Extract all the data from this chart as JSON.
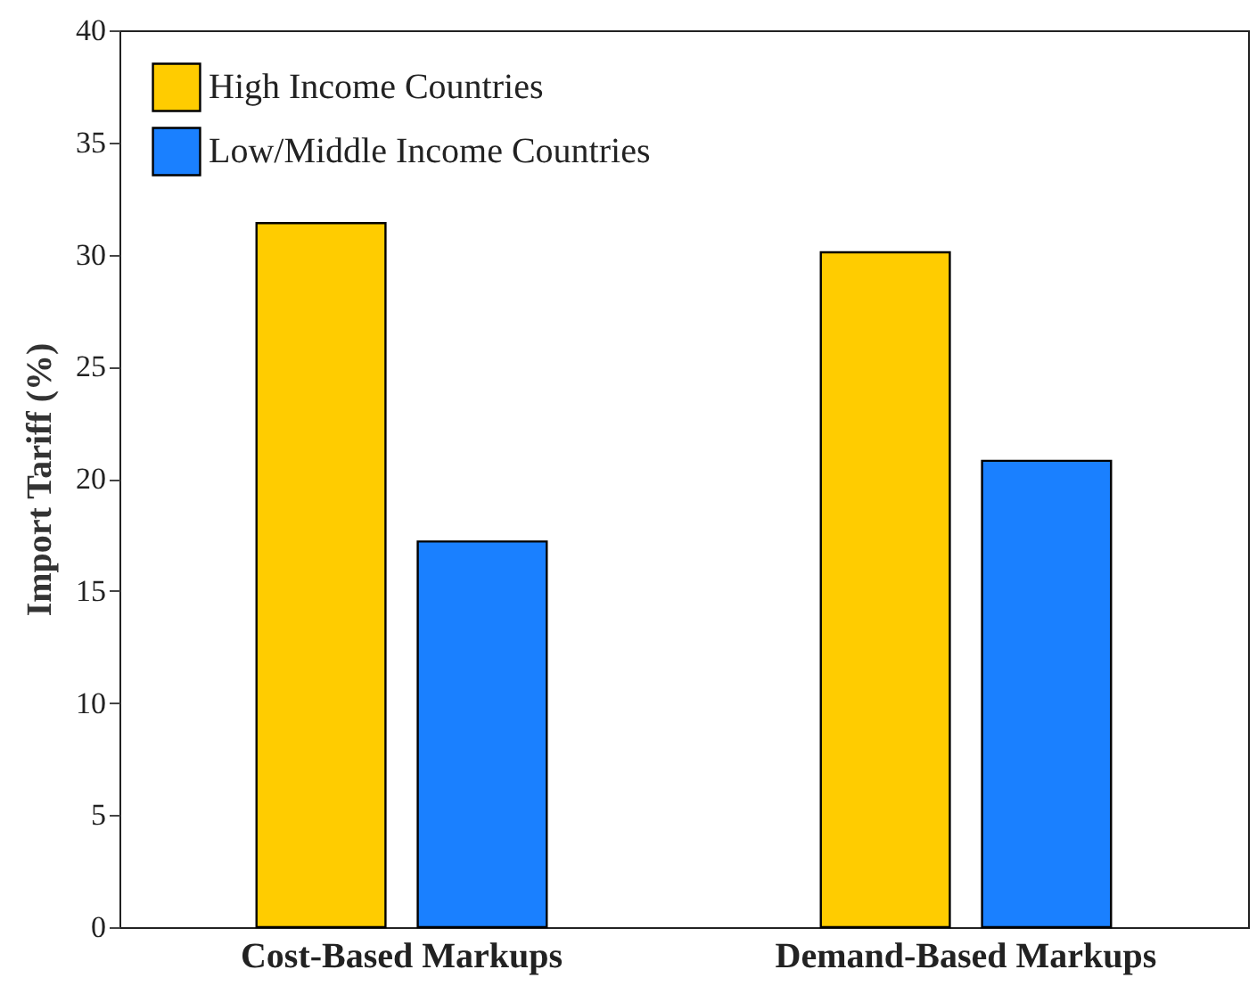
{
  "chart_data": {
    "type": "bar",
    "ylabel": "Import Tariff (%)",
    "categories": [
      "Cost-Based Markups",
      "Demand-Based Markups"
    ],
    "series": [
      {
        "name": "High Income Countries",
        "color": "#ffcc00",
        "values": [
          31.4,
          30.1
        ]
      },
      {
        "name": "Low/Middle Income Countries",
        "color": "#1a80ff",
        "values": [
          17.2,
          20.8
        ]
      }
    ],
    "ylim": [
      0,
      40
    ],
    "yticks": [
      0,
      5,
      10,
      15,
      20,
      25,
      30,
      35,
      40
    ],
    "grid": false,
    "legend": "top left"
  }
}
